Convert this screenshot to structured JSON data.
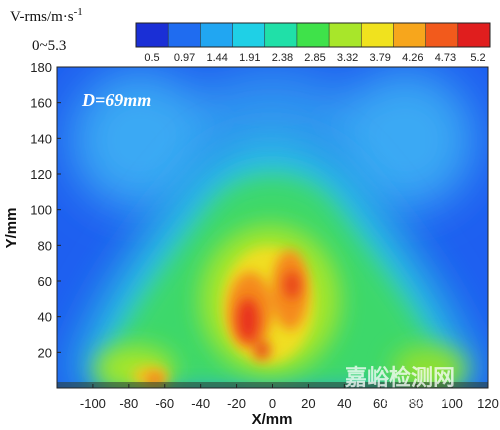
{
  "chart_data": {
    "type": "heatmap",
    "title": "",
    "xlabel": "X/mm",
    "ylabel": "Y/mm",
    "xlim": [
      -120,
      120
    ],
    "ylim": [
      0,
      180
    ],
    "x_ticks": [
      -100,
      -80,
      -60,
      -40,
      -20,
      0,
      20,
      40,
      60,
      80,
      100,
      120
    ],
    "y_ticks": [
      20,
      40,
      60,
      80,
      100,
      120,
      140,
      160,
      180
    ],
    "colorbar": {
      "title_line1": "V-rms/m·s",
      "title_sup": "-1",
      "title_line2": "0~5.3",
      "tick_labels": [
        "0.5",
        "0.97",
        "1.44",
        "1.91",
        "2.38",
        "2.85",
        "3.32",
        "3.79",
        "4.26",
        "4.73",
        "5.2"
      ],
      "range": [
        0,
        5.3
      ],
      "colors": [
        "#1a2fd6",
        "#1f6cf0",
        "#21a6f2",
        "#1fd0e6",
        "#20e0a8",
        "#3fe24a",
        "#a8e62a",
        "#f0e21e",
        "#f7a61c",
        "#f25a1c",
        "#e01e1e"
      ]
    },
    "annotation": "D=69mm",
    "regions": [
      {
        "name": "upper-left-plume",
        "x": -70,
        "y": 150,
        "value": 1.5
      },
      {
        "name": "upper-right-plume",
        "x": 70,
        "y": 150,
        "value": 1.5
      },
      {
        "name": "central-jet",
        "x": 0,
        "y": 70,
        "value": 2.7
      },
      {
        "name": "core-left",
        "x": -12,
        "y": 45,
        "value": 4.6
      },
      {
        "name": "core-right",
        "x": 18,
        "y": 55,
        "value": 4.2
      },
      {
        "name": "left-wall-jet",
        "x": -70,
        "y": 15,
        "value": 3.0
      },
      {
        "name": "right-wall-jet",
        "x": 70,
        "y": 15,
        "value": 3.0
      }
    ]
  },
  "watermark": {
    "chinese": "嘉峪检测网",
    "latin": "AnyTesting.com"
  }
}
